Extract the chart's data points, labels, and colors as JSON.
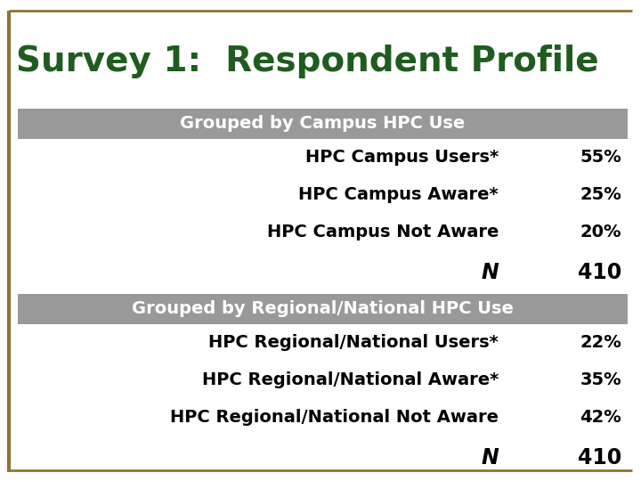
{
  "title": "Survey 1:  Respondent Profile",
  "title_color": "#1F5C1F",
  "title_fontsize": 28,
  "border_color": "#8B7536",
  "background_color": "#FFFFFF",
  "header_bg_color": "#999999",
  "header_text_color": "#FFFFFF",
  "header_fontsize": 14,
  "row_fontsize": 14,
  "data_text_color": "#000000",
  "rows": [
    {
      "type": "header",
      "label": "Grouped by Campus HPC Use",
      "value": ""
    },
    {
      "type": "data",
      "label": "HPC Campus Users*",
      "value": "55%"
    },
    {
      "type": "data",
      "label": "HPC Campus Aware*",
      "value": "25%"
    },
    {
      "type": "data",
      "label": "HPC Campus Not Aware",
      "value": "20%"
    },
    {
      "type": "n",
      "label": "N",
      "value": "410"
    },
    {
      "type": "header",
      "label": "Grouped by Regional/National HPC Use",
      "value": ""
    },
    {
      "type": "data",
      "label": "HPC Regional/National Users*",
      "value": "22%"
    },
    {
      "type": "data",
      "label": "HPC Regional/National Aware*",
      "value": "35%"
    },
    {
      "type": "data",
      "label": "HPC Regional/National Not Aware",
      "value": "42%"
    },
    {
      "type": "n",
      "label": "N",
      "value": "410"
    }
  ]
}
